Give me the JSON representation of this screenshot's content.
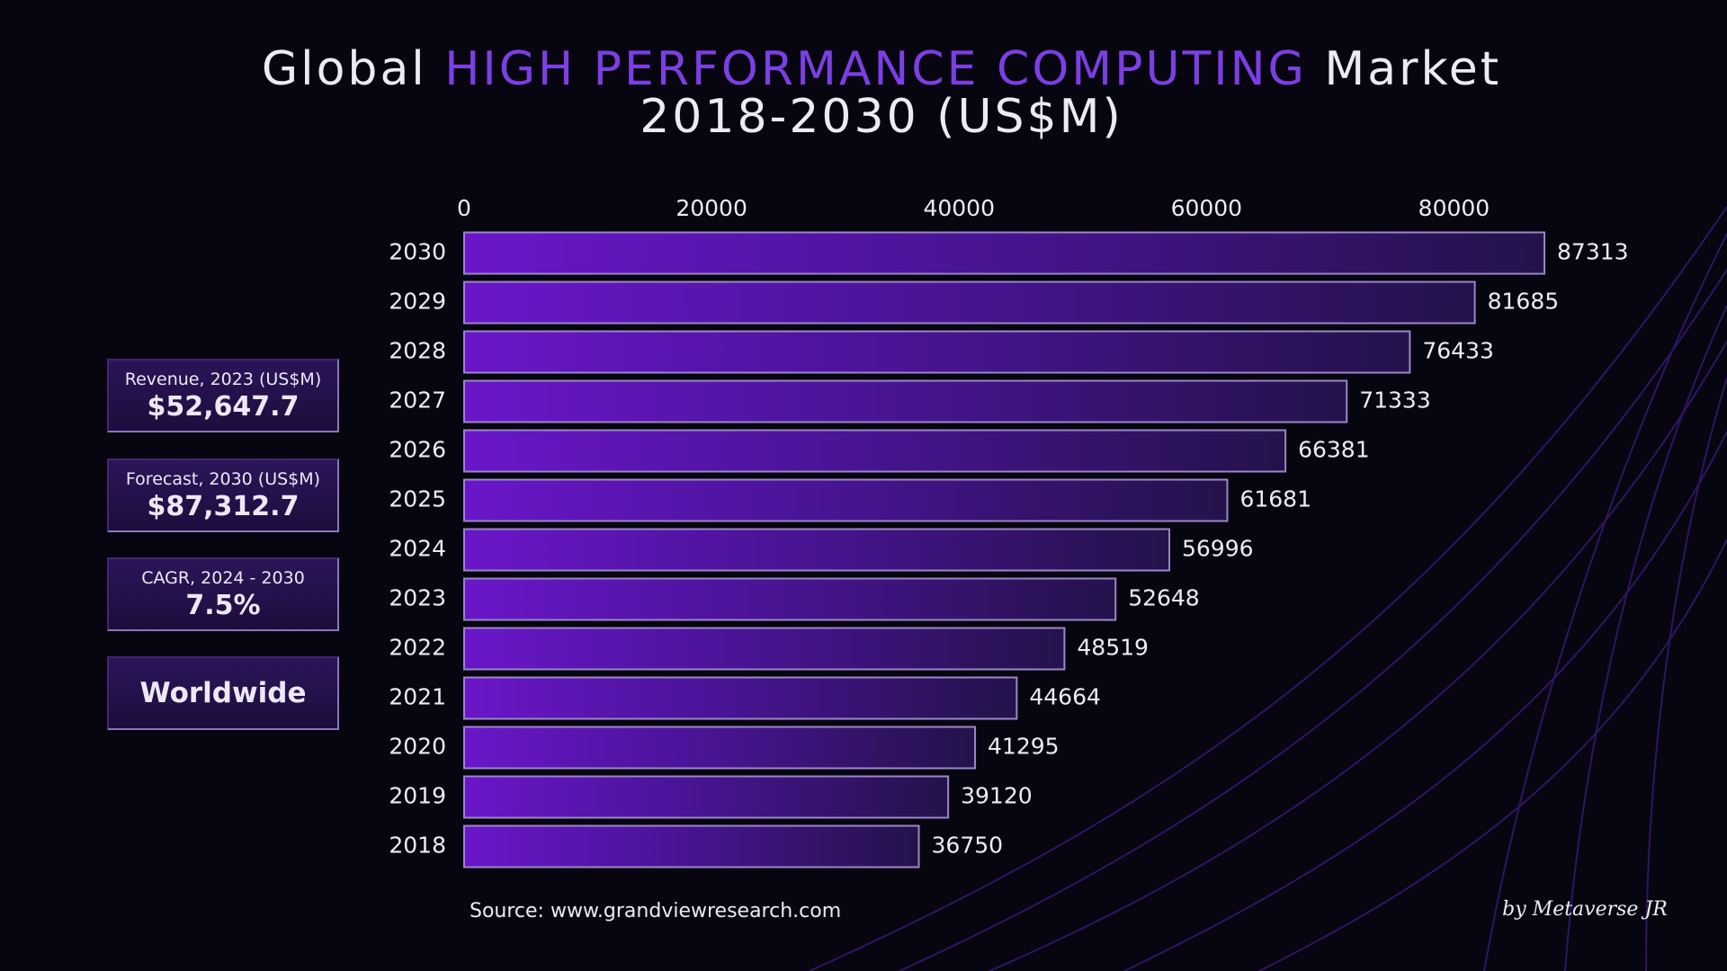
{
  "chart_data": {
    "type": "bar",
    "orientation": "horizontal",
    "title": {
      "prefix": "Global",
      "highlight": "HIGH PERFORMANCE COMPUTING",
      "suffix": "Market"
    },
    "subtitle": "2018-2030 (US$M)",
    "categories": [
      "2030",
      "2029",
      "2028",
      "2027",
      "2026",
      "2025",
      "2024",
      "2023",
      "2022",
      "2021",
      "2020",
      "2019",
      "2018"
    ],
    "values": [
      87313,
      81685,
      76433,
      71333,
      66381,
      61681,
      56996,
      52648,
      48519,
      44664,
      41295,
      39120,
      36750
    ],
    "color": "#6a16c9",
    "xlim": [
      0,
      90000
    ],
    "xticks": [
      0,
      20000,
      40000,
      60000,
      80000
    ],
    "grid": false,
    "source": "Source: www.grandviewresearch.com"
  },
  "stats": [
    {
      "label": "Revenue, 2023 (US$M)",
      "value": "$52,647.7"
    },
    {
      "label": "Forecast, 2030 (US$M)",
      "value": "$87,312.7"
    },
    {
      "label": "CAGR, 2024 - 2030",
      "value": "7.5%"
    }
  ],
  "region": "Worldwide",
  "signature": "by Metaverse JR"
}
